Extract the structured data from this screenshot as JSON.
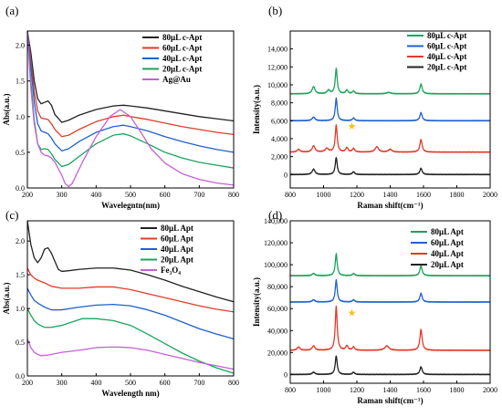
{
  "chart_data": [
    {
      "panel": "(a)",
      "type": "line",
      "xlabel": "Wavelegntn(nm)",
      "ylabel": "Abs(a.u.)",
      "xlim": [
        200,
        800
      ],
      "ylim": [
        0,
        2.2
      ],
      "xticks": [
        200,
        300,
        400,
        500,
        600,
        700,
        800
      ],
      "yticks": [
        0,
        0.5,
        1.0,
        1.5,
        2.0
      ],
      "ytick_labels": [
        "0.0",
        "0.5",
        "1.0",
        "1.5",
        "2.0"
      ],
      "legend": "top-right",
      "series": [
        {
          "name": "80μL c-Apt",
          "color": "#222222",
          "x": [
            200,
            210,
            220,
            230,
            240,
            250,
            260,
            270,
            280,
            300,
            320,
            350,
            400,
            450,
            480,
            500,
            550,
            600,
            650,
            700,
            750,
            800
          ],
          "y": [
            2.2,
            1.9,
            1.5,
            1.25,
            1.18,
            1.2,
            1.22,
            1.16,
            1.03,
            0.92,
            0.95,
            1.02,
            1.1,
            1.15,
            1.16,
            1.15,
            1.12,
            1.08,
            1.04,
            1.0,
            0.97,
            0.94
          ]
        },
        {
          "name": "60μL c-Apt",
          "color": "#e23b2a",
          "x": [
            200,
            210,
            220,
            230,
            240,
            250,
            260,
            270,
            280,
            300,
            320,
            350,
            400,
            450,
            480,
            500,
            550,
            600,
            650,
            700,
            750,
            800
          ],
          "y": [
            2.2,
            1.8,
            1.35,
            1.08,
            0.98,
            0.97,
            0.96,
            0.9,
            0.82,
            0.72,
            0.74,
            0.82,
            0.93,
            1.0,
            1.02,
            1.0,
            0.96,
            0.91,
            0.86,
            0.82,
            0.78,
            0.75
          ]
        },
        {
          "name": "40μL c-Apt",
          "color": "#2060d0",
          "x": [
            200,
            210,
            220,
            230,
            240,
            250,
            260,
            270,
            280,
            300,
            320,
            350,
            400,
            450,
            480,
            500,
            550,
            600,
            650,
            700,
            750,
            800
          ],
          "y": [
            2.2,
            1.7,
            1.2,
            0.9,
            0.8,
            0.78,
            0.76,
            0.7,
            0.62,
            0.52,
            0.55,
            0.65,
            0.78,
            0.86,
            0.88,
            0.86,
            0.8,
            0.72,
            0.65,
            0.59,
            0.54,
            0.5
          ]
        },
        {
          "name": "20μL c-Apt",
          "color": "#1aa35b",
          "x": [
            200,
            210,
            220,
            230,
            240,
            250,
            260,
            270,
            280,
            300,
            320,
            350,
            400,
            450,
            480,
            500,
            550,
            600,
            650,
            700,
            750,
            800
          ],
          "y": [
            2.2,
            1.5,
            0.95,
            0.62,
            0.54,
            0.55,
            0.54,
            0.48,
            0.4,
            0.3,
            0.33,
            0.44,
            0.62,
            0.74,
            0.76,
            0.73,
            0.62,
            0.5,
            0.42,
            0.36,
            0.32,
            0.28
          ]
        },
        {
          "name": "Ag@Au",
          "color": "#c560d8",
          "x": [
            200,
            210,
            220,
            230,
            240,
            250,
            260,
            270,
            280,
            300,
            310,
            320,
            330,
            340,
            360,
            400,
            440,
            470,
            500,
            530,
            560,
            600,
            650,
            700,
            750,
            800
          ],
          "y": [
            2.2,
            1.4,
            0.9,
            0.62,
            0.5,
            0.46,
            0.45,
            0.42,
            0.36,
            0.18,
            0.06,
            0.02,
            0.06,
            0.16,
            0.36,
            0.72,
            1.0,
            1.1,
            1.0,
            0.78,
            0.55,
            0.35,
            0.2,
            0.12,
            0.07,
            0.04
          ]
        }
      ]
    },
    {
      "panel": "(b)",
      "type": "line",
      "xlabel": "Raman shift(cm⁻¹)",
      "ylabel": "Intensity(a.u.)",
      "xlim": [
        800,
        2000
      ],
      "ylim": [
        -1500,
        16000
      ],
      "xticks": [
        800,
        1000,
        1200,
        1400,
        1600,
        1800,
        2000
      ],
      "yticks": [
        0,
        2000,
        4000,
        6000,
        8000,
        10000,
        12000,
        14000
      ],
      "ytick_labels": [
        "0",
        "2,000",
        "4,000",
        "6,000",
        "8,000",
        "10,000",
        "12,000",
        "14,000"
      ],
      "legend": "top-right",
      "annotation": "★",
      "annotation_pos": [
        1170,
        5000
      ],
      "series": [
        {
          "name": "80μL c-Apt",
          "color": "#1aa35b",
          "baseline": 9000,
          "peaks": [
            [
              940,
              800,
              10
            ],
            [
              1030,
              400,
              10
            ],
            [
              1076,
              2800,
              7
            ],
            [
              1140,
              400,
              8
            ],
            [
              1180,
              300,
              8
            ],
            [
              1390,
              150,
              15
            ],
            [
              1585,
              1100,
              8
            ]
          ]
        },
        {
          "name": "60μL c-Apt",
          "color": "#2060d0",
          "baseline": 6000,
          "peaks": [
            [
              940,
              400,
              10
            ],
            [
              1076,
              2500,
              7
            ],
            [
              1180,
              300,
              8
            ],
            [
              1585,
              900,
              8
            ]
          ]
        },
        {
          "name": "40μL c-Apt",
          "color": "#e23b2a",
          "baseline": 2500,
          "peaks": [
            [
              850,
              300,
              10
            ],
            [
              940,
              700,
              10
            ],
            [
              1020,
              400,
              12
            ],
            [
              1076,
              3000,
              7
            ],
            [
              1140,
              500,
              8
            ],
            [
              1180,
              400,
              8
            ],
            [
              1320,
              600,
              12
            ],
            [
              1400,
              300,
              12
            ],
            [
              1585,
              1400,
              8
            ]
          ]
        },
        {
          "name": "20μL c-Apt",
          "color": "#222222",
          "baseline": 0,
          "peaks": [
            [
              940,
              600,
              10
            ],
            [
              1076,
              1900,
              7
            ],
            [
              1180,
              300,
              8
            ],
            [
              1585,
              700,
              8
            ]
          ]
        }
      ]
    },
    {
      "panel": "(c)",
      "type": "line",
      "xlabel": "Wavelength  nm)",
      "ylabel": "Abs(a.u.)",
      "xlim": [
        200,
        800
      ],
      "ylim": [
        0,
        2.3
      ],
      "xticks": [
        200,
        300,
        400,
        500,
        600,
        700,
        800
      ],
      "yticks": [
        0,
        0.5,
        1.0,
        1.5,
        2.0
      ],
      "ytick_labels": [
        "0.0",
        "0.5",
        "1.0",
        "1.5",
        "2.0"
      ],
      "legend": "top-right",
      "series": [
        {
          "name": "80μL Apt",
          "color": "#222222",
          "x": [
            200,
            210,
            220,
            230,
            240,
            250,
            260,
            270,
            280,
            290,
            300,
            320,
            350,
            400,
            450,
            500,
            550,
            600,
            650,
            700,
            750,
            800
          ],
          "y": [
            2.3,
            1.95,
            1.75,
            1.68,
            1.75,
            1.88,
            1.9,
            1.82,
            1.7,
            1.58,
            1.55,
            1.56,
            1.58,
            1.6,
            1.6,
            1.57,
            1.5,
            1.42,
            1.33,
            1.25,
            1.17,
            1.1
          ]
        },
        {
          "name": "60μL Apt",
          "color": "#e23b2a",
          "x": [
            200,
            210,
            220,
            230,
            250,
            270,
            300,
            350,
            400,
            450,
            500,
            550,
            600,
            650,
            700,
            750,
            800
          ],
          "y": [
            1.6,
            1.5,
            1.45,
            1.42,
            1.38,
            1.33,
            1.3,
            1.3,
            1.32,
            1.32,
            1.28,
            1.22,
            1.16,
            1.1,
            1.04,
            0.99,
            0.95
          ]
        },
        {
          "name": "40μL Apt",
          "color": "#2060d0",
          "x": [
            200,
            210,
            220,
            230,
            250,
            270,
            300,
            350,
            400,
            450,
            500,
            550,
            600,
            650,
            700,
            750,
            800
          ],
          "y": [
            1.3,
            1.2,
            1.12,
            1.08,
            1.02,
            0.98,
            0.98,
            1.02,
            1.05,
            1.06,
            1.04,
            0.98,
            0.9,
            0.8,
            0.7,
            0.62,
            0.55
          ]
        },
        {
          "name": "20μL Apt",
          "color": "#1aa35b",
          "x": [
            200,
            210,
            220,
            230,
            250,
            270,
            300,
            330,
            360,
            400,
            450,
            500,
            550,
            600,
            650,
            700,
            750,
            800
          ],
          "y": [
            1.0,
            0.9,
            0.82,
            0.77,
            0.72,
            0.72,
            0.75,
            0.8,
            0.85,
            0.85,
            0.82,
            0.75,
            0.62,
            0.48,
            0.34,
            0.22,
            0.12,
            0.04
          ]
        },
        {
          "name": "Fe₃O₄",
          "color": "#c560d8",
          "x": [
            200,
            210,
            220,
            230,
            240,
            260,
            280,
            300,
            350,
            400,
            450,
            500,
            550,
            600,
            650,
            700,
            750,
            800
          ],
          "y": [
            0.55,
            0.42,
            0.35,
            0.32,
            0.3,
            0.31,
            0.33,
            0.35,
            0.38,
            0.42,
            0.43,
            0.42,
            0.38,
            0.32,
            0.26,
            0.2,
            0.15,
            0.1
          ]
        }
      ]
    },
    {
      "panel": "(d)",
      "type": "line",
      "xlabel": "Raman shift(cm⁻¹)",
      "ylabel": "Intensity(a.u.)",
      "xlim": [
        800,
        2000
      ],
      "ylim": [
        -8000,
        140000
      ],
      "xticks": [
        800,
        1000,
        1200,
        1400,
        1600,
        1800,
        2000
      ],
      "yticks": [
        0,
        20000,
        40000,
        60000,
        80000,
        100000,
        120000,
        140000
      ],
      "ytick_labels": [
        "0",
        "20,000",
        "40,000",
        "60,000",
        "80,000",
        "100,000",
        "120,000",
        "140,000"
      ],
      "legend": "top-right",
      "annotation": "★",
      "annotation_pos": [
        1170,
        53000
      ],
      "series": [
        {
          "name": "80μL Apt",
          "color": "#1aa35b",
          "baseline": 90000,
          "peaks": [
            [
              940,
              2000,
              10
            ],
            [
              1076,
              20000,
              7
            ],
            [
              1180,
              2000,
              8
            ],
            [
              1585,
              9000,
              8
            ]
          ]
        },
        {
          "name": "60μL Apt",
          "color": "#2060d0",
          "baseline": 66000,
          "peaks": [
            [
              940,
              2000,
              10
            ],
            [
              1076,
              20000,
              7
            ],
            [
              1180,
              2000,
              8
            ],
            [
              1585,
              8000,
              8
            ]
          ]
        },
        {
          "name": "40μL Apt",
          "color": "#e23b2a",
          "baseline": 22000,
          "peaks": [
            [
              850,
              3000,
              10
            ],
            [
              940,
              4000,
              10
            ],
            [
              1076,
              40000,
              7
            ],
            [
              1140,
              4000,
              8
            ],
            [
              1180,
              3000,
              8
            ],
            [
              1380,
              4000,
              15
            ],
            [
              1585,
              19000,
              8
            ]
          ]
        },
        {
          "name": "20μL Apt",
          "color": "#222222",
          "baseline": 0,
          "peaks": [
            [
              940,
              2000,
              10
            ],
            [
              1076,
              17000,
              7
            ],
            [
              1180,
              2000,
              8
            ],
            [
              1585,
              7000,
              8
            ]
          ]
        }
      ]
    }
  ]
}
